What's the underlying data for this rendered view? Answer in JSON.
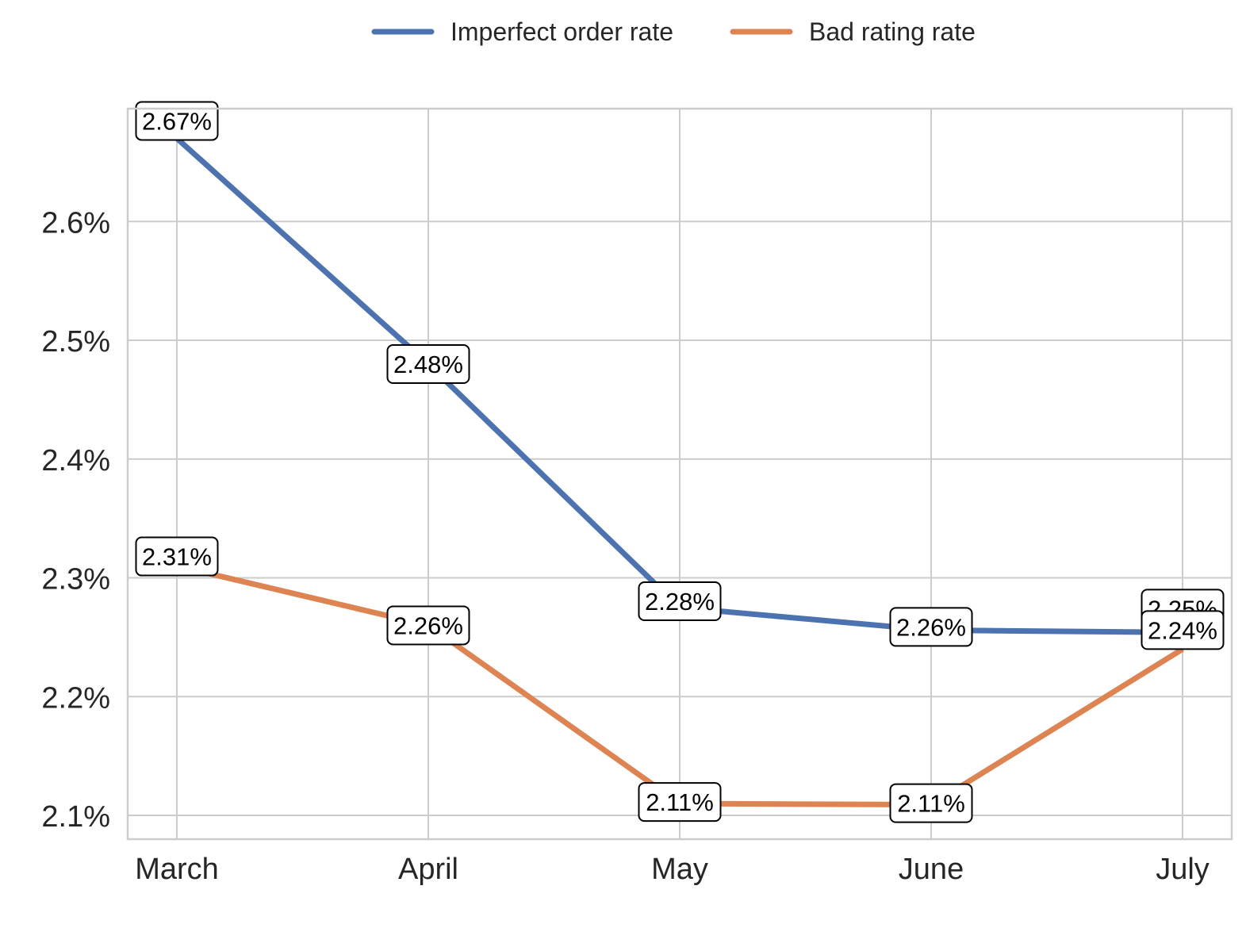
{
  "chart_data": {
    "type": "line",
    "title": "",
    "xlabel": "",
    "ylabel": "",
    "categories": [
      "March",
      "April",
      "May",
      "June",
      "July"
    ],
    "ylim": [
      2.08,
      2.695
    ],
    "yticks": [
      2.1,
      2.2,
      2.3,
      2.4,
      2.5,
      2.6
    ],
    "ytick_labels": [
      "2.1%",
      "2.2%",
      "2.3%",
      "2.4%",
      "2.5%",
      "2.6%"
    ],
    "grid": true,
    "legend_position": "top-center",
    "series": [
      {
        "name": "Imperfect order rate",
        "color": "#4c72b0",
        "values": [
          2.67,
          2.48,
          2.275,
          2.256,
          2.254
        ],
        "labels": [
          "2.67%",
          "2.48%",
          "2.28%",
          "2.26%",
          "2.25%"
        ]
      },
      {
        "name": "Bad rating rate",
        "color": "#dd8452",
        "values": [
          2.31,
          2.26,
          2.11,
          2.109,
          2.24
        ],
        "labels": [
          "2.31%",
          "2.26%",
          "2.11%",
          "2.11%",
          "2.24%"
        ]
      }
    ]
  }
}
